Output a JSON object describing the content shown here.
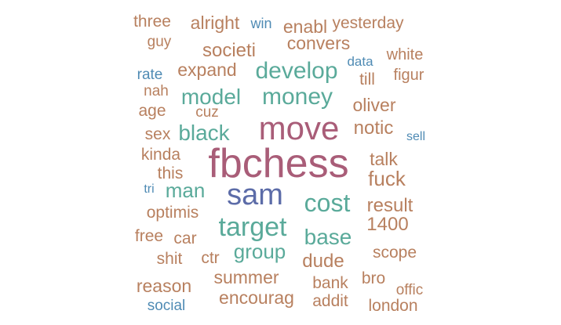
{
  "palette": {
    "tan": "#b8805f",
    "teal": "#5aaa9a",
    "blue": "#4f8bb4",
    "mauve": "#a95d78",
    "slate": "#5c6ca8"
  },
  "words": [
    {
      "text": "three",
      "color": "tan"
    },
    {
      "text": "alright",
      "color": "tan"
    },
    {
      "text": "win",
      "color": "blue"
    },
    {
      "text": "enabl",
      "color": "tan"
    },
    {
      "text": "yesterday",
      "color": "tan"
    },
    {
      "text": "guy",
      "color": "tan"
    },
    {
      "text": "convers",
      "color": "tan"
    },
    {
      "text": "societi",
      "color": "tan"
    },
    {
      "text": "white",
      "color": "tan"
    },
    {
      "text": "data",
      "color": "blue"
    },
    {
      "text": "rate",
      "color": "blue"
    },
    {
      "text": "expand",
      "color": "tan"
    },
    {
      "text": "develop",
      "color": "teal"
    },
    {
      "text": "till",
      "color": "tan"
    },
    {
      "text": "figur",
      "color": "tan"
    },
    {
      "text": "nah",
      "color": "tan"
    },
    {
      "text": "model",
      "color": "teal"
    },
    {
      "text": "money",
      "color": "teal"
    },
    {
      "text": "oliver",
      "color": "tan"
    },
    {
      "text": "age",
      "color": "tan"
    },
    {
      "text": "cuz",
      "color": "tan"
    },
    {
      "text": "move",
      "color": "mauve"
    },
    {
      "text": "sex",
      "color": "tan"
    },
    {
      "text": "black",
      "color": "teal"
    },
    {
      "text": "notic",
      "color": "tan"
    },
    {
      "text": "sell",
      "color": "blue"
    },
    {
      "text": "kinda",
      "color": "tan"
    },
    {
      "text": "fbchess",
      "color": "mauve"
    },
    {
      "text": "talk",
      "color": "tan"
    },
    {
      "text": "this",
      "color": "tan"
    },
    {
      "text": "fuck",
      "color": "tan"
    },
    {
      "text": "tri",
      "color": "blue"
    },
    {
      "text": "man",
      "color": "teal"
    },
    {
      "text": "sam",
      "color": "slate"
    },
    {
      "text": "cost",
      "color": "teal"
    },
    {
      "text": "result",
      "color": "tan"
    },
    {
      "text": "optimis",
      "color": "tan"
    },
    {
      "text": "target",
      "color": "teal"
    },
    {
      "text": "1400",
      "color": "tan"
    },
    {
      "text": "free",
      "color": "tan"
    },
    {
      "text": "car",
      "color": "tan"
    },
    {
      "text": "base",
      "color": "teal"
    },
    {
      "text": "shit",
      "color": "tan"
    },
    {
      "text": "ctr",
      "color": "tan"
    },
    {
      "text": "group",
      "color": "teal"
    },
    {
      "text": "scope",
      "color": "tan"
    },
    {
      "text": "dude",
      "color": "tan"
    },
    {
      "text": "summer",
      "color": "tan"
    },
    {
      "text": "reason",
      "color": "tan"
    },
    {
      "text": "bank",
      "color": "tan"
    },
    {
      "text": "bro",
      "color": "tan"
    },
    {
      "text": "offic",
      "color": "tan"
    },
    {
      "text": "encourag",
      "color": "tan"
    },
    {
      "text": "social",
      "color": "blue"
    },
    {
      "text": "addit",
      "color": "tan"
    },
    {
      "text": "london",
      "color": "tan"
    }
  ]
}
